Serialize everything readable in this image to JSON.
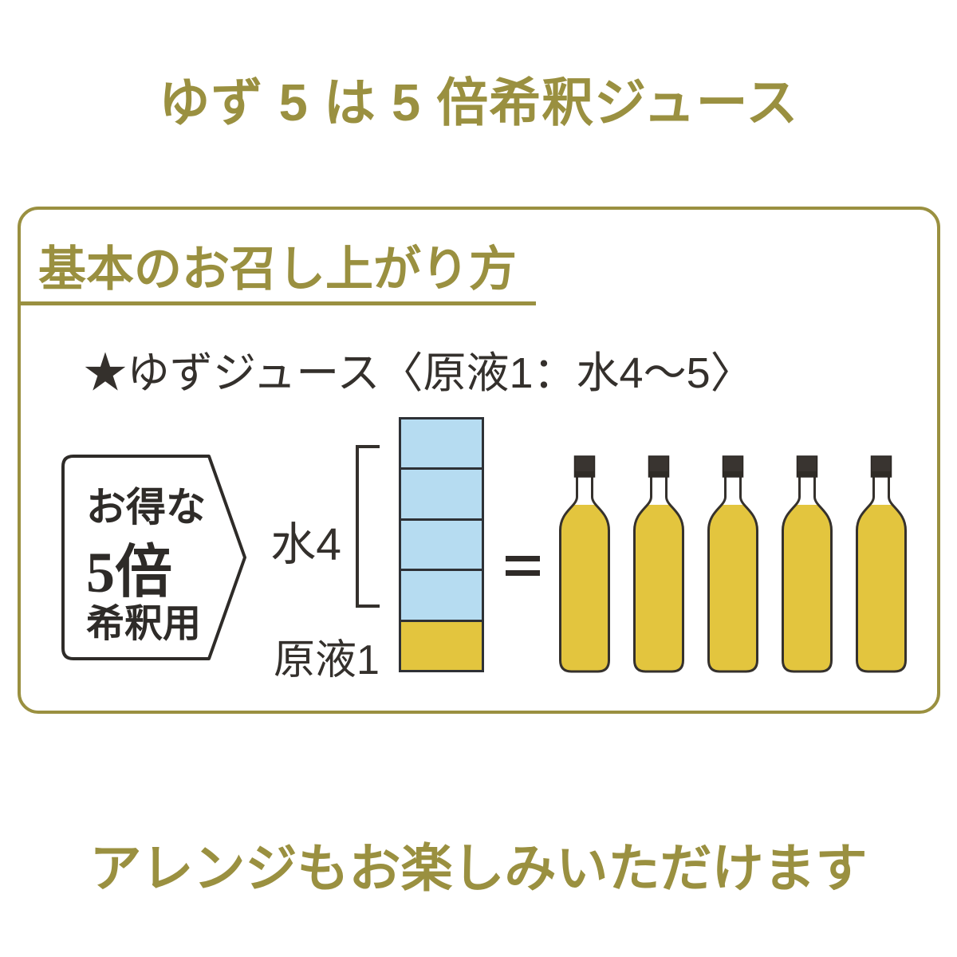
{
  "title": "ゆず 5 は 5 倍希釈ジュース",
  "panel": {
    "heading": "基本のお召し上がり方",
    "recipe_line": "★ゆずジュース〈原液1：水4〜5〉",
    "badge": {
      "line1": "お得な",
      "line2": "5倍",
      "line3": "希釈用"
    },
    "diagram": {
      "water_label": "水4",
      "juice_label": "原液1",
      "water_parts": 4,
      "juice_parts": 1,
      "bottle_count": 5
    }
  },
  "footer": "アレンジもお楽しみいただけます",
  "colors": {
    "olive": "#9A9040",
    "yellow": "#E3C53E",
    "blue": "#B6DCF1",
    "dark": "#34302C"
  }
}
